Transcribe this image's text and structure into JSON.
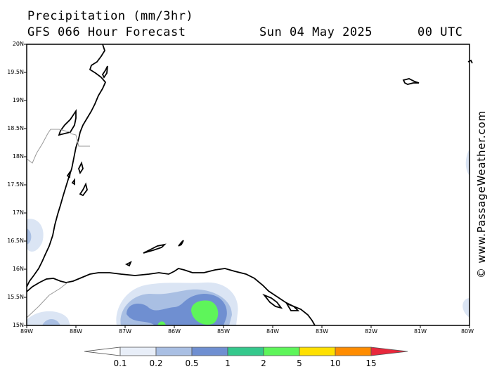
{
  "header": {
    "title": "Precipitation (mm/3hr)",
    "subtitle": "GFS 066 Hour Forecast",
    "date": "Sun 04 May 2025",
    "time": "00 UTC"
  },
  "credit": "© www.PassageWeather.com",
  "axes": {
    "lat_labels": [
      "20N",
      "19.5N",
      "19N",
      "18.5N",
      "18N",
      "17.5N",
      "17N",
      "16.5N",
      "16N",
      "15.5N",
      "15N"
    ],
    "lon_labels": [
      "89W",
      "88W",
      "87W",
      "86W",
      "85W",
      "84W",
      "83W",
      "82W",
      "81W",
      "80W"
    ]
  },
  "colorbar": {
    "labels": [
      "0.1",
      "0.2",
      "0.5",
      "1",
      "2",
      "5",
      "10",
      "15"
    ],
    "colors": [
      "#ffffff",
      "#e8eef8",
      "#a9bfe3",
      "#6f8fd1",
      "#35c88c",
      "#5ef55a",
      "#ffe000",
      "#ff8c00",
      "#e8283c"
    ]
  },
  "colors": {
    "land_outline": "#000000",
    "border": "#888888",
    "precip_light": "#dbe5f4",
    "precip_mid": "#a9bfe3",
    "precip_heavy": "#6f8fd1",
    "precip_green": "#5ef55a"
  }
}
